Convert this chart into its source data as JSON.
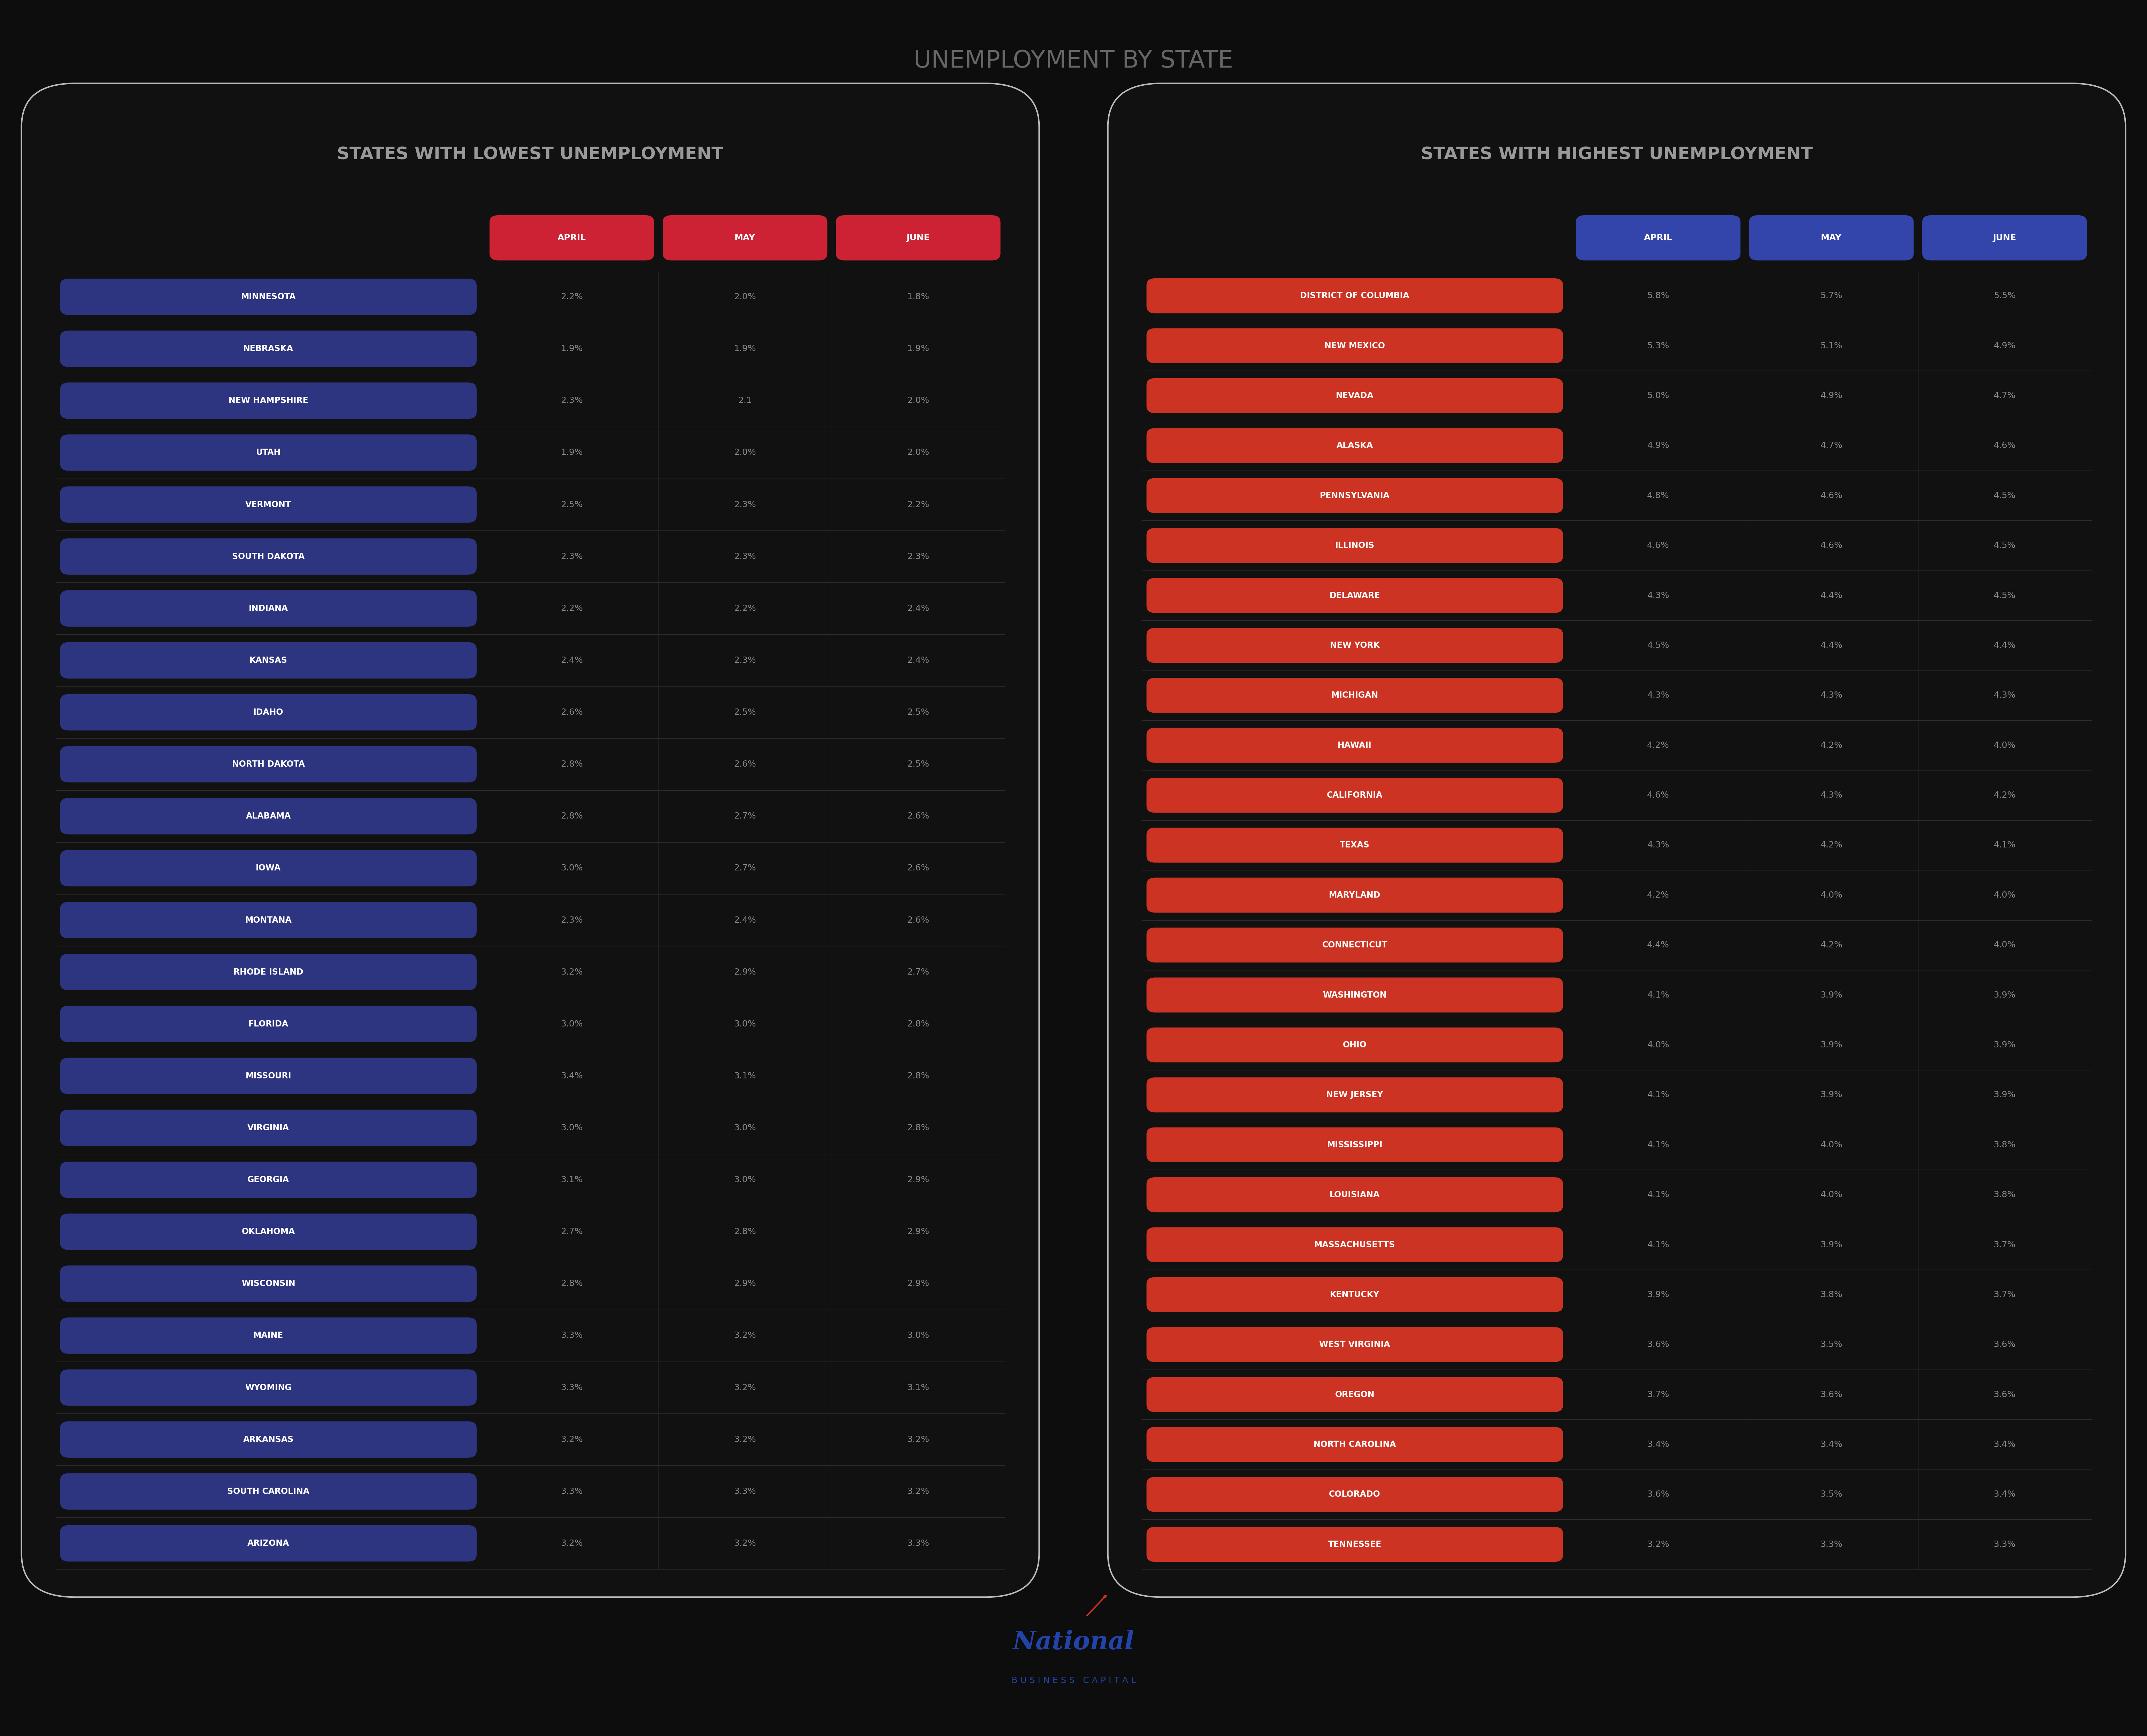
{
  "title": "UNEMPLOYMENT BY STATE",
  "title_color": "#666666",
  "bg_color": "#0d0d0d",
  "panel_color": "#111111",
  "panel_border_color": "#bbbbbb",
  "left_panel_title": "STATES WITH LOWEST UNEMPLOYMENT",
  "right_panel_title": "STATES WITH HIGHEST UNEMPLOYMENT",
  "panel_title_color": "#999999",
  "left_header_color": "#cc2233",
  "right_header_color": "#3344aa",
  "header_text_color": "#ffffff",
  "left_state_bg_color": "#2d3580",
  "right_state_bg_color": "#cc3322",
  "state_text_color": "#ffffff",
  "data_text_color": "#888888",
  "line_color": "#2a2a2a",
  "headers": [
    "APRIL",
    "MAY",
    "JUNE"
  ],
  "lowest_states": [
    {
      "name": "MINNESOTA",
      "april": "2.2%",
      "may": "2.0%",
      "june": "1.8%"
    },
    {
      "name": "NEBRASKA",
      "april": "1.9%",
      "may": "1.9%",
      "june": "1.9%"
    },
    {
      "name": "NEW HAMPSHIRE",
      "april": "2.3%",
      "may": "2.1",
      "june": "2.0%"
    },
    {
      "name": "UTAH",
      "april": "1.9%",
      "may": "2.0%",
      "june": "2.0%"
    },
    {
      "name": "VERMONT",
      "april": "2.5%",
      "may": "2.3%",
      "june": "2.2%"
    },
    {
      "name": "SOUTH DAKOTA",
      "april": "2.3%",
      "may": "2.3%",
      "june": "2.3%"
    },
    {
      "name": "INDIANA",
      "april": "2.2%",
      "may": "2.2%",
      "june": "2.4%"
    },
    {
      "name": "KANSAS",
      "april": "2.4%",
      "may": "2.3%",
      "june": "2.4%"
    },
    {
      "name": "IDAHO",
      "april": "2.6%",
      "may": "2.5%",
      "june": "2.5%"
    },
    {
      "name": "NORTH DAKOTA",
      "april": "2.8%",
      "may": "2.6%",
      "june": "2.5%"
    },
    {
      "name": "ALABAMA",
      "april": "2.8%",
      "may": "2.7%",
      "june": "2.6%"
    },
    {
      "name": "IOWA",
      "april": "3.0%",
      "may": "2.7%",
      "june": "2.6%"
    },
    {
      "name": "MONTANA",
      "april": "2.3%",
      "may": "2.4%",
      "june": "2.6%"
    },
    {
      "name": "RHODE ISLAND",
      "april": "3.2%",
      "may": "2.9%",
      "june": "2.7%"
    },
    {
      "name": "FLORIDA",
      "april": "3.0%",
      "may": "3.0%",
      "june": "2.8%"
    },
    {
      "name": "MISSOURI",
      "april": "3.4%",
      "may": "3.1%",
      "june": "2.8%"
    },
    {
      "name": "VIRGINIA",
      "april": "3.0%",
      "may": "3.0%",
      "june": "2.8%"
    },
    {
      "name": "GEORGIA",
      "april": "3.1%",
      "may": "3.0%",
      "june": "2.9%"
    },
    {
      "name": "OKLAHOMA",
      "april": "2.7%",
      "may": "2.8%",
      "june": "2.9%"
    },
    {
      "name": "WISCONSIN",
      "april": "2.8%",
      "may": "2.9%",
      "june": "2.9%"
    },
    {
      "name": "MAINE",
      "april": "3.3%",
      "may": "3.2%",
      "june": "3.0%"
    },
    {
      "name": "WYOMING",
      "april": "3.3%",
      "may": "3.2%",
      "june": "3.1%"
    },
    {
      "name": "ARKANSAS",
      "april": "3.2%",
      "may": "3.2%",
      "june": "3.2%"
    },
    {
      "name": "SOUTH CAROLINA",
      "april": "3.3%",
      "may": "3.3%",
      "june": "3.2%"
    },
    {
      "name": "ARIZONA",
      "april": "3.2%",
      "may": "3.2%",
      "june": "3.3%"
    }
  ],
  "highest_states": [
    {
      "name": "DISTRICT OF COLUMBIA",
      "april": "5.8%",
      "may": "5.7%",
      "june": "5.5%"
    },
    {
      "name": "NEW MEXICO",
      "april": "5.3%",
      "may": "5.1%",
      "june": "4.9%"
    },
    {
      "name": "NEVADA",
      "april": "5.0%",
      "may": "4.9%",
      "june": "4.7%"
    },
    {
      "name": "ALASKA",
      "april": "4.9%",
      "may": "4.7%",
      "june": "4.6%"
    },
    {
      "name": "PENNSYLVANIA",
      "april": "4.8%",
      "may": "4.6%",
      "june": "4.5%"
    },
    {
      "name": "ILLINOIS",
      "april": "4.6%",
      "may": "4.6%",
      "june": "4.5%"
    },
    {
      "name": "DELAWARE",
      "april": "4.3%",
      "may": "4.4%",
      "june": "4.5%"
    },
    {
      "name": "NEW YORK",
      "april": "4.5%",
      "may": "4.4%",
      "june": "4.4%"
    },
    {
      "name": "MICHIGAN",
      "april": "4.3%",
      "may": "4.3%",
      "june": "4.3%"
    },
    {
      "name": "HAWAII",
      "april": "4.2%",
      "may": "4.2%",
      "june": "4.0%"
    },
    {
      "name": "CALIFORNIA",
      "april": "4.6%",
      "may": "4.3%",
      "june": "4.2%"
    },
    {
      "name": "TEXAS",
      "april": "4.3%",
      "may": "4.2%",
      "june": "4.1%"
    },
    {
      "name": "MARYLAND",
      "april": "4.2%",
      "may": "4.0%",
      "june": "4.0%"
    },
    {
      "name": "CONNECTICUT",
      "april": "4.4%",
      "may": "4.2%",
      "june": "4.0%"
    },
    {
      "name": "WASHINGTON",
      "april": "4.1%",
      "may": "3.9%",
      "june": "3.9%"
    },
    {
      "name": "OHIO",
      "april": "4.0%",
      "may": "3.9%",
      "june": "3.9%"
    },
    {
      "name": "NEW JERSEY",
      "april": "4.1%",
      "may": "3.9%",
      "june": "3.9%"
    },
    {
      "name": "MISSISSIPPI",
      "april": "4.1%",
      "may": "4.0%",
      "june": "3.8%"
    },
    {
      "name": "LOUISIANA",
      "april": "4.1%",
      "may": "4.0%",
      "june": "3.8%"
    },
    {
      "name": "MASSACHUSETTS",
      "april": "4.1%",
      "may": "3.9%",
      "june": "3.7%"
    },
    {
      "name": "KENTUCKY",
      "april": "3.9%",
      "may": "3.8%",
      "june": "3.7%"
    },
    {
      "name": "WEST VIRGINIA",
      "april": "3.6%",
      "may": "3.5%",
      "june": "3.6%"
    },
    {
      "name": "OREGON",
      "april": "3.7%",
      "may": "3.6%",
      "june": "3.6%"
    },
    {
      "name": "NORTH CAROLINA",
      "april": "3.4%",
      "may": "3.4%",
      "june": "3.4%"
    },
    {
      "name": "COLORADO",
      "april": "3.6%",
      "may": "3.5%",
      "june": "3.4%"
    },
    {
      "name": "TENNESSEE",
      "april": "3.2%",
      "may": "3.3%",
      "june": "3.3%"
    }
  ]
}
